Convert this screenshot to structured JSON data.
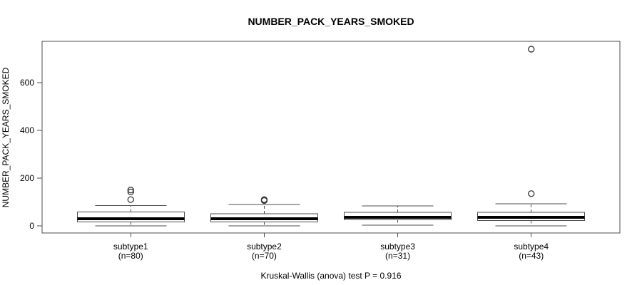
{
  "chart_data": {
    "type": "boxplot",
    "title": "NUMBER_PACK_YEARS_SMOKED",
    "ylabel": "NUMBER_PACK_YEARS_SMOKED",
    "xlabel": "",
    "footer": "Kruskal-Wallis (anova) test P = 0.916",
    "grid": false,
    "legend": null,
    "ylim": [
      -30,
      773
    ],
    "yticks": [
      0,
      200,
      400,
      600
    ],
    "colors": {
      "stroke": "#000000",
      "box_fill": "#ffffff",
      "background": "#ffffff"
    },
    "groups": [
      {
        "category": "subtype1",
        "n": 80,
        "n_label": "(n=80)",
        "whisker_low": 0,
        "q1": 16,
        "median": 30,
        "q3": 58,
        "whisker_high": 85,
        "outliers": [
          110,
          142,
          150
        ]
      },
      {
        "category": "subtype2",
        "n": 70,
        "n_label": "(n=70)",
        "whisker_low": 0,
        "q1": 17,
        "median": 29,
        "q3": 50,
        "whisker_high": 90,
        "outliers": [
          106,
          110
        ]
      },
      {
        "category": "subtype3",
        "n": 31,
        "n_label": "(n=31)",
        "whisker_low": 3,
        "q1": 25,
        "median": 36,
        "q3": 57,
        "whisker_high": 84,
        "outliers": []
      },
      {
        "category": "subtype4",
        "n": 43,
        "n_label": "(n=43)",
        "whisker_low": 0,
        "q1": 22,
        "median": 35,
        "q3": 57,
        "whisker_high": 92,
        "outliers": [
          135,
          740
        ]
      }
    ]
  }
}
